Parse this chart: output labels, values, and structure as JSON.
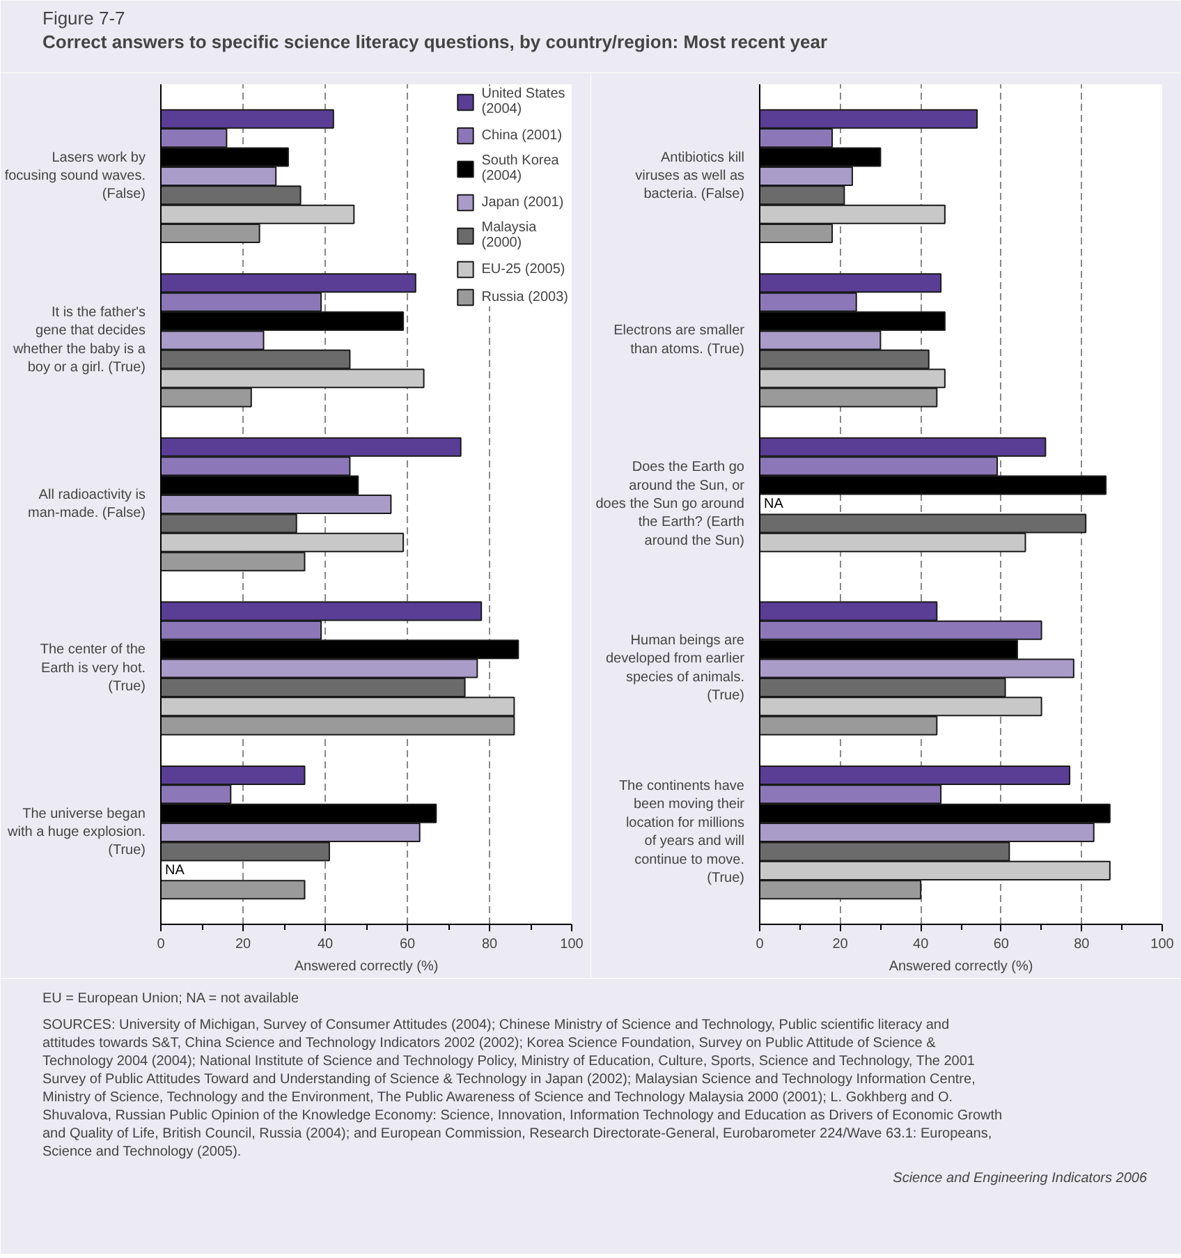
{
  "chart_data": [
    {
      "type": "bar",
      "orientation": "horizontal",
      "title": "Figure 7-7",
      "subtitle": "Correct answers to specific science literacy questions, by country/region: Most recent year",
      "categories": [
        "Lasers work by focusing sound waves. (False)",
        "It is the father's gene that decides whether the baby is a boy or a girl. (True)",
        "All radioactivity is man-made. (False)",
        "The center of the Earth is very hot. (True)",
        "The universe began with a huge explosion. (True)"
      ],
      "series": [
        {
          "name": "United States (2004)",
          "color": "#5a3e96",
          "values": [
            42,
            62,
            73,
            78,
            35
          ]
        },
        {
          "name": "China (2001)",
          "color": "#8c78b8",
          "values": [
            16,
            39,
            46,
            39,
            17
          ]
        },
        {
          "name": "South Korea (2004)",
          "color": "#000000",
          "values": [
            31,
            59,
            48,
            87,
            67
          ]
        },
        {
          "name": "Japan (2001)",
          "color": "#aa9cc9",
          "values": [
            28,
            25,
            56,
            77,
            63
          ]
        },
        {
          "name": "Malaysia (2000)",
          "color": "#6b6b6b",
          "values": [
            34,
            46,
            33,
            74,
            41
          ]
        },
        {
          "name": "EU-25 (2005)",
          "color": "#c8c8c8",
          "values": [
            47,
            64,
            59,
            86,
            null
          ],
          "value_labels": [
            null,
            null,
            null,
            null,
            "NA"
          ]
        },
        {
          "name": "Russia (2003)",
          "color": "#9a9a9a",
          "values": [
            24,
            22,
            35,
            86,
            35
          ]
        }
      ],
      "xlabel": "Answered correctly (%)",
      "xlim": [
        0,
        100
      ],
      "xticks": [
        0,
        {
          "value": 10,
          "label": null
        },
        20,
        {
          "value": 30,
          "label": null
        },
        40,
        {
          "value": 50,
          "label": null
        },
        60,
        {
          "value": 70,
          "label": null
        },
        80,
        {
          "value": 90,
          "label": null
        },
        100
      ],
      "grid": "x",
      "legend": "top right"
    },
    {
      "type": "bar",
      "orientation": "horizontal",
      "categories": [
        "Antibiotics kill viruses as well as bacteria. (False)",
        "Electrons are smaller than atoms. (True)",
        "Does the Earth go around the Sun, or does the Sun go around the Earth? (Earth around the Sun)",
        "Human beings are developed from earlier species of animals. (True)",
        "The continents have been moving their location for millions of years and will continue to move. (True)"
      ],
      "series": [
        {
          "color": "#5a3e96",
          "values": [
            54,
            45,
            71,
            44,
            77
          ]
        },
        {
          "color": "#8c78b8",
          "values": [
            18,
            24,
            59,
            70,
            45
          ]
        },
        {
          "color": "#000000",
          "values": [
            30,
            46,
            86,
            64,
            87
          ]
        },
        {
          "color": "#aa9cc9",
          "values": [
            23,
            30,
            null,
            78,
            83
          ],
          "value_labels": [
            null,
            null,
            "NA",
            null,
            null
          ]
        },
        {
          "color": "#6b6b6b",
          "values": [
            21,
            42,
            81,
            61,
            62
          ]
        },
        {
          "color": "#c8c8c8",
          "values": [
            46,
            46,
            66,
            70,
            87
          ]
        },
        {
          "color": "#9a9a9a",
          "values": [
            18,
            44,
            null,
            44,
            40
          ]
        }
      ],
      "xlabel": "Answered correctly (%)",
      "xlim": [
        0,
        100
      ],
      "xticks": [
        0,
        {
          "value": 10,
          "label": null
        },
        20,
        {
          "value": 30,
          "label": null
        },
        40,
        {
          "value": 50,
          "label": null
        },
        60,
        {
          "value": 70,
          "label": null
        },
        80,
        {
          "value": 90,
          "label": null
        },
        100
      ],
      "grid": "x",
      "annotations": [
        "EU = European Union; NA = not available",
        "SOURCES: University of Michigan, Survey of Consumer Attitudes (2004); Chinese Ministry of Science and Technology, Public scientific literacy and attitudes towards S&T, China Science and Technology Indicators 2002 (2002); Korea Science Foundation, Survey on Public Attitude of Science & Technology 2004 (2004); National Institute of Science and Technology Policy, Ministry of Education, Culture, Sports, Science and Technology, The 2001 Survey of Public Attitudes Toward and Understanding of Science & Technology in Japan (2002); Malaysian Science and Technology Information Centre, Ministry of Science, Technology and the Environment, The Public Awareness of Science and Technology Malaysia 2000 (2001); L. Gokhberg and O. Shuvalova, Russian Public Opinion of the Knowledge Economy: Science, Innovation, Information Technology and Education as Drivers of Economic Growth and Quality of Life, British Council, Russia (2004); and European Commission, Research Directorate-General, Eurobarometer 224/Wave 63.1: Europeans, Science and Technology (2005).",
        "Science and Engineering Indicators 2006"
      ]
    }
  ]
}
